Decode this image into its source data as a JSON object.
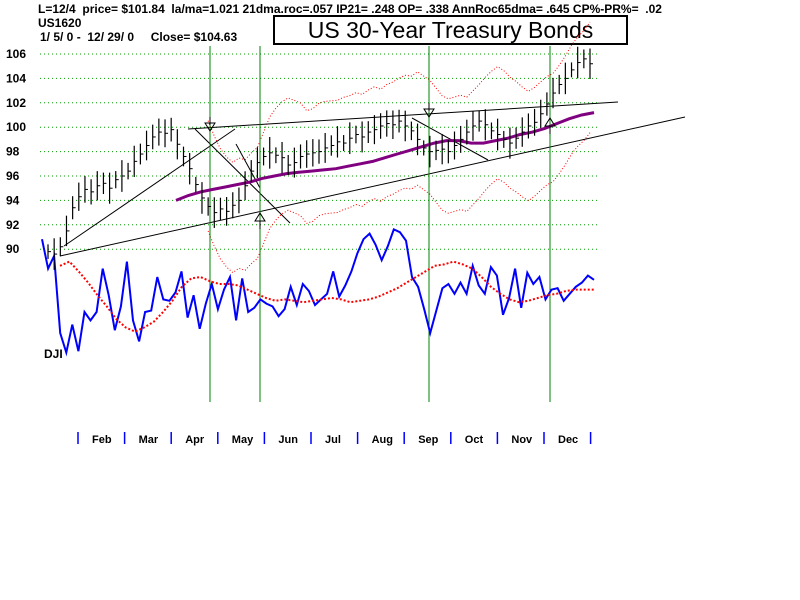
{
  "header": {
    "stats_line": "L=12/4  price= $101.84  la/ma=1.021 21dma.roc=.057 IP21= .248 OP= .338 AnnRoc65dma= .645 CP%-PR%=  .02",
    "ticker": "US1620",
    "range_line": "1/ 5/ 0 -  12/ 29/ 0     Close= $104.63"
  },
  "chart_data": {
    "type": "line",
    "title": "US 30-Year Treasury Bonds",
    "y_ticks": [
      "106",
      "104",
      "102",
      "100",
      "98",
      "96",
      "94",
      "92",
      "90"
    ],
    "ylim": [
      89,
      106.5
    ],
    "months": [
      "Feb",
      "Mar",
      "Apr",
      "May",
      "Jun",
      "Jul",
      "Aug",
      "Sep",
      "Oct",
      "Nov",
      "Dec"
    ],
    "indicator_label": "DJI",
    "grid": "horizontal dotted",
    "signal_dates": [
      "Apr 12",
      "May 11",
      "Sep 5",
      "Nov 28"
    ],
    "series": [
      {
        "role": "price",
        "values": [
          89.8,
          89.6,
          90.2,
          91.5,
          93.4,
          94.3,
          94.9,
          94.7,
          95.2,
          95.4,
          95.0,
          95.7,
          96.0,
          96.4,
          97.2,
          97.8,
          98.5,
          99.2,
          99.6,
          99.5,
          99.8,
          98.6,
          97.6,
          96.6,
          95.3,
          94.2,
          93.5,
          93.0,
          93.3,
          93.1,
          93.6,
          94.0,
          95.2,
          96.4,
          97.1,
          97.6,
          97.9,
          97.7,
          97.5,
          96.9,
          97.1,
          97.6,
          97.8,
          97.9,
          98.0,
          98.3,
          98.5,
          98.8,
          98.7,
          99.1,
          99.4,
          99.2,
          99.6,
          99.8,
          100.1,
          100.3,
          100.2,
          100.5,
          100.1,
          99.7,
          99.0,
          98.3,
          98.0,
          98.1,
          98.2,
          98.0,
          98.5,
          99.0,
          99.6,
          100.1,
          100.5,
          100.2,
          99.7,
          99.4,
          99.0,
          98.7,
          99.1,
          99.6,
          100.1,
          100.4,
          101.1,
          101.9,
          102.8,
          103.5,
          104.0,
          104.7,
          105.3,
          105.6,
          105.2
        ]
      },
      {
        "role": "moving-average",
        "color": "#800080",
        "values": [
          94.0,
          94.4,
          94.7,
          94.9,
          95.1,
          95.3,
          95.5,
          95.8,
          96.0,
          96.2,
          96.3,
          96.4,
          96.5,
          96.6,
          96.8,
          97.0,
          97.2,
          97.5,
          97.8,
          98.1,
          98.4,
          98.7,
          98.9,
          98.9,
          98.7,
          98.7,
          98.9,
          99.1,
          99.4,
          99.6,
          99.9,
          100.3,
          100.7,
          101.0,
          101.2
        ]
      },
      {
        "role": "indicator",
        "color": "#0000ff",
        "values": [
          92,
          71,
          80,
          25,
          11,
          31,
          12,
          40,
          34,
          40,
          71,
          52,
          27,
          44,
          76,
          34,
          19,
          40,
          41,
          65,
          49,
          48,
          54,
          69,
          36,
          52,
          28,
          46,
          60,
          42,
          56,
          65,
          34,
          64,
          40,
          43,
          49,
          46,
          44,
          37,
          42,
          58,
          45,
          60,
          55,
          45,
          49,
          53,
          69,
          51,
          59,
          69,
          82,
          92,
          96,
          88,
          77,
          87,
          99,
          97,
          91,
          65,
          58,
          42,
          25,
          41,
          57,
          60,
          53,
          61,
          53,
          73,
          59,
          53,
          72,
          66,
          38,
          50,
          71,
          43,
          68,
          60,
          65,
          49,
          56,
          57,
          48,
          53,
          58,
          61,
          66,
          63
        ]
      },
      {
        "role": "indicator-average",
        "color": "#ff0000",
        "values": [
          73,
          76,
          69,
          61,
          52,
          44,
          35,
          29,
          26,
          29,
          33,
          40,
          48,
          58,
          64,
          65,
          62,
          60,
          60,
          59,
          56,
          53,
          50,
          48,
          49,
          48,
          47,
          48,
          49,
          50,
          49,
          47,
          48,
          49,
          51,
          54,
          57,
          61,
          65,
          69,
          73,
          74,
          76,
          74,
          71,
          65,
          58,
          53,
          49,
          47,
          48,
          50,
          52,
          53,
          55,
          56,
          56,
          56
        ]
      }
    ]
  }
}
